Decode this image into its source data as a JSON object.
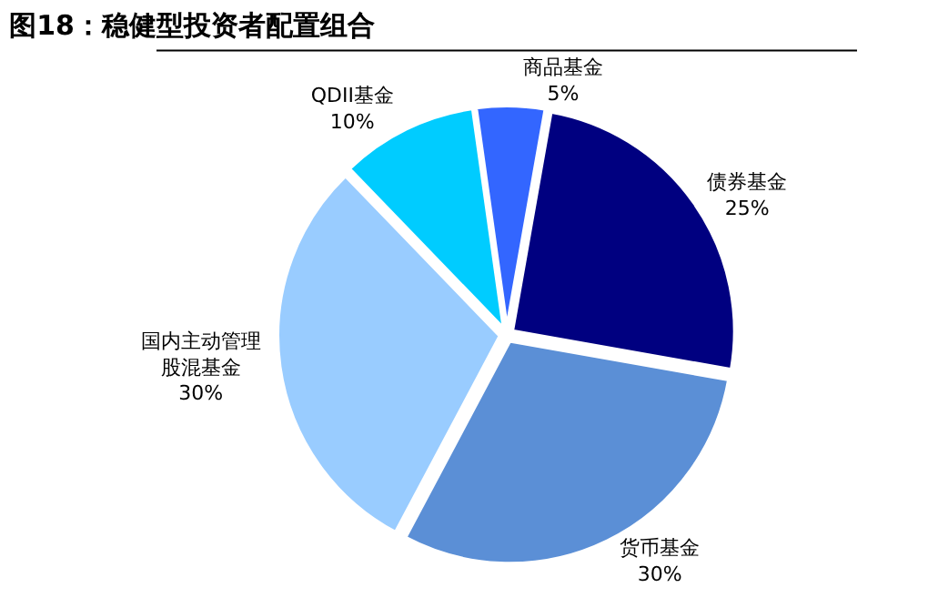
{
  "chart_data": {
    "type": "pie",
    "title": "图18：稳健型投资者配置组合",
    "categories": [
      "债券基金",
      "货币基金",
      "国内主动管理股混基金",
      "QDII基金",
      "商品基金"
    ],
    "values": [
      25,
      30,
      30,
      10,
      5
    ],
    "value_labels": [
      "25%",
      "30%",
      "30%",
      "10%",
      "5%"
    ],
    "colors": [
      "#000080",
      "#5b8fd6",
      "#99ccff",
      "#00ccff",
      "#3366ff"
    ],
    "legend": false
  }
}
